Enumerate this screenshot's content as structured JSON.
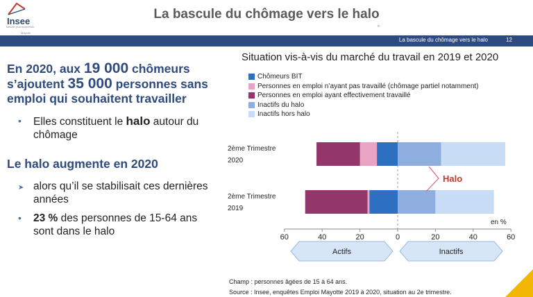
{
  "logo": {
    "name": "Insee",
    "subtitle": "Mesurer pour comprendre",
    "place": "Mayotte"
  },
  "title": "La bascule du chômage vers le halo",
  "topbar": {
    "section": "La bascule du chômage vers le halo",
    "page": "12"
  },
  "left": {
    "h1_part1": "En 2020, aux ",
    "h1_num1": "19 000",
    "h1_part2": " chômeurs s’ajoutent ",
    "h1_num2": "35 000",
    "h1_part3": " personnes sans emploi qui souhaitent travailler",
    "b1_pre": "Elles constituent le ",
    "b1_bold": "halo",
    "b1_post": " autour du chômage",
    "h2": "Le halo augmente en 2020",
    "b2": "alors qu’il se stabilisait ces dernières années",
    "b3_bold": "23 %",
    "b3_post": " des personnes de 15-64 ans sont dans le halo"
  },
  "chart_data": {
    "type": "bar",
    "orientation": "horizontal-diverging",
    "title": "Situation vis-à-vis du marché du travail en 2019 et 2020",
    "categories": [
      "2ème Trimestre 2020",
      "2ème Trimestre 2019"
    ],
    "categories_lines": [
      [
        "2ème Trimestre",
        "2020"
      ],
      [
        "2ème Trimestre",
        "2019"
      ]
    ],
    "series": [
      {
        "name": "Chômeurs BIT",
        "color": "#2d6fc1",
        "side": "left",
        "values": [
          11,
          15
        ]
      },
      {
        "name": "Personnes en emploi n’ayant pas travaillé (chômage partiel notamment)",
        "color": "#e8a4c4",
        "side": "left",
        "values": [
          9,
          1
        ]
      },
      {
        "name": "Personnes en emploi ayant effectivement travaillé",
        "color": "#93366a",
        "side": "left",
        "values": [
          23,
          33
        ]
      },
      {
        "name": "Inactifs du halo",
        "color": "#8daedf",
        "side": "right",
        "values": [
          23,
          20
        ]
      },
      {
        "name": "Inactifs hors halo",
        "color": "#c8ddf5",
        "side": "right",
        "values": [
          34,
          31
        ]
      }
    ],
    "xlim": [
      -60,
      60
    ],
    "xticks": [
      -60,
      -40,
      -20,
      0,
      20,
      40,
      60
    ],
    "xtick_labels": [
      "60",
      "40",
      "20",
      "0",
      "20",
      "40",
      "60"
    ],
    "unit_label": "en %",
    "annotation": "Halo",
    "left_group": "Actifs",
    "right_group": "Inactifs"
  },
  "footer": {
    "champ": "Champ : personnes âgées de 15 à 64 ans.",
    "source": "Source : Insee, enquêtes Emploi Mayotte 2019 à 2020, situation au 2e trimestre."
  }
}
